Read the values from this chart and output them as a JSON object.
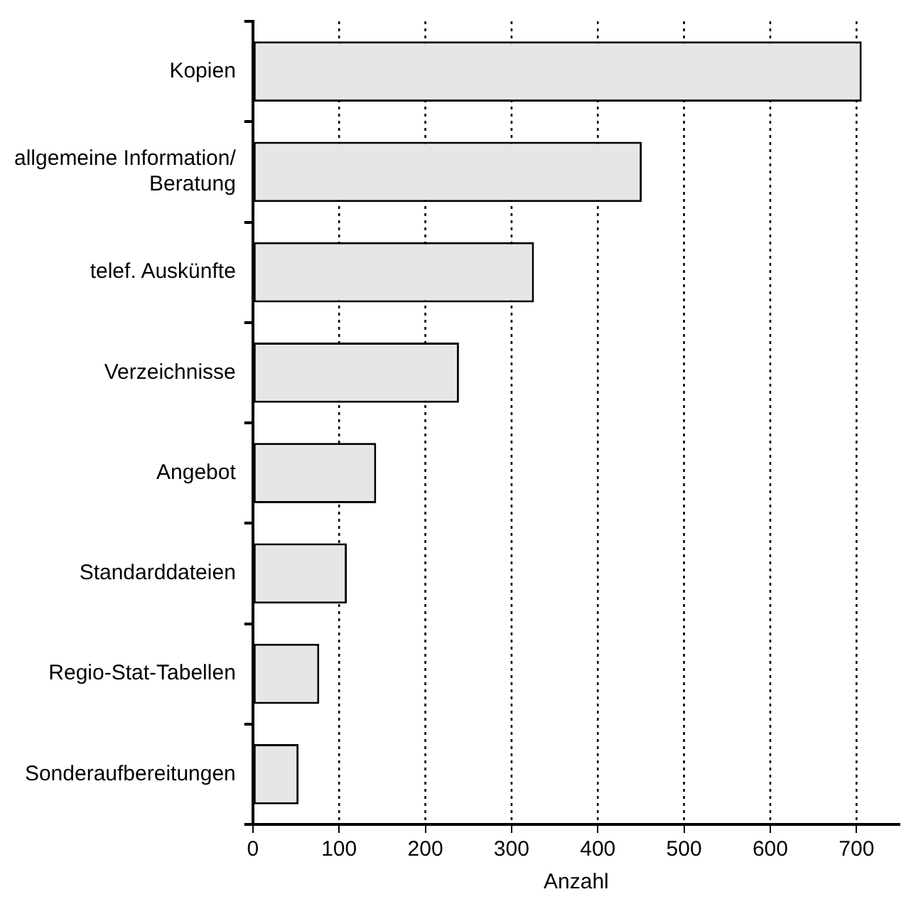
{
  "chart_data": {
    "type": "bar",
    "orientation": "horizontal",
    "xlabel": "Anzahl",
    "categories": [
      "Kopien",
      "allgemeine Information/ Beratung",
      "telef. Auskünfte",
      "Verzeichnisse",
      "Angebot",
      "Standarddateien",
      "Regio-Stat-Tabellen",
      "Sonderaufbereitungen"
    ],
    "values": [
      706,
      451,
      326,
      239,
      143,
      109,
      77,
      53
    ],
    "color": "#e6e6e6",
    "xlim": [
      0,
      750
    ],
    "xticks": [
      0,
      100,
      200,
      300,
      400,
      500,
      600,
      700
    ],
    "grid": "x",
    "legend": false
  }
}
